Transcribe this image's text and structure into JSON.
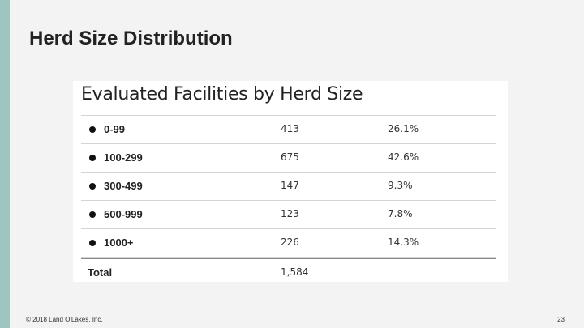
{
  "slide": {
    "title": "Herd Size Distribution",
    "footer": "© 2018 Land O'Lakes, Inc.",
    "page_number": "23"
  },
  "table": {
    "title": "Evaluated Facilities by Herd Size",
    "rows": [
      {
        "category": "0-99",
        "count": "413",
        "percent": "26.1%"
      },
      {
        "category": "100-299",
        "count": "675",
        "percent": "42.6%"
      },
      {
        "category": "300-499",
        "count": "147",
        "percent": "9.3%"
      },
      {
        "category": "500-999",
        "count": "123",
        "percent": "7.8%"
      },
      {
        "category": "1000+",
        "count": "226",
        "percent": "14.3%"
      }
    ],
    "total": {
      "label": "Total",
      "count": "1,584"
    }
  },
  "colors": {
    "accent_bar": "#9fc5c0",
    "background": "#f3f3f3"
  }
}
